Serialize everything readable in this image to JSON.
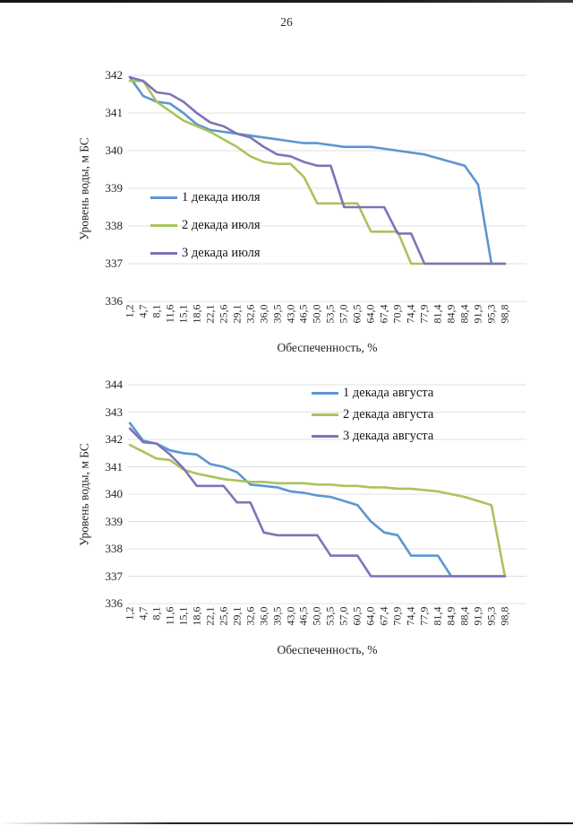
{
  "page": {
    "number": "26"
  },
  "chart_data": [
    {
      "type": "line",
      "title": "",
      "xlabel": "Обеспеченность, %",
      "ylabel": "Уровень воды, м БС",
      "ylim": [
        336,
        342
      ],
      "ytick_step": 1,
      "grid": true,
      "legend_position": "inside-left-middle",
      "categories": [
        "1,2",
        "4,7",
        "8,1",
        "11,6",
        "15,1",
        "18,6",
        "22,1",
        "25,6",
        "29,1",
        "32,6",
        "36,0",
        "39,5",
        "43,0",
        "46,5",
        "50,0",
        "53,5",
        "57,0",
        "60,5",
        "64,0",
        "67,4",
        "70,9",
        "74,4",
        "77,9",
        "81,4",
        "84,9",
        "88,4",
        "91,9",
        "95,3",
        "98,8"
      ],
      "series": [
        {
          "name": "1 декада июля",
          "color": "#5b96d2",
          "values": [
            341.95,
            341.45,
            341.3,
            341.25,
            341.0,
            340.7,
            340.55,
            340.5,
            340.45,
            340.4,
            340.35,
            340.3,
            340.25,
            340.2,
            340.2,
            340.15,
            340.1,
            340.1,
            340.1,
            340.05,
            340.0,
            339.95,
            339.9,
            339.8,
            339.7,
            339.6,
            339.1,
            337.0,
            337.0
          ]
        },
        {
          "name": "2 декада июля",
          "color": "#a9c45c",
          "values": [
            341.85,
            341.85,
            341.3,
            341.05,
            340.8,
            340.65,
            340.5,
            340.3,
            340.1,
            339.85,
            339.7,
            339.65,
            339.65,
            339.3,
            338.6,
            338.6,
            338.6,
            338.6,
            337.85,
            337.85,
            337.85,
            337.0,
            337.0,
            337.0,
            337.0,
            337.0,
            337.0,
            337.0,
            337.0
          ]
        },
        {
          "name": "3 декада июля",
          "color": "#7d74b9",
          "values": [
            341.95,
            341.85,
            341.55,
            341.5,
            341.3,
            341.0,
            340.75,
            340.65,
            340.45,
            340.35,
            340.1,
            339.9,
            339.85,
            339.7,
            339.6,
            339.6,
            338.5,
            338.5,
            338.5,
            338.5,
            337.8,
            337.8,
            337.0,
            337.0,
            337.0,
            337.0,
            337.0,
            337.0,
            337.0
          ]
        }
      ]
    },
    {
      "type": "line",
      "title": "",
      "xlabel": "Обеспеченность, %",
      "ylabel": "Уровень воды, м БС",
      "ylim": [
        336,
        344
      ],
      "ytick_step": 1,
      "grid": true,
      "legend_position": "inside-top-right",
      "categories": [
        "1,2",
        "4,7",
        "8,1",
        "11,6",
        "15,1",
        "18,6",
        "22,1",
        "25,6",
        "29,1",
        "32,6",
        "36,0",
        "39,5",
        "43,0",
        "46,5",
        "50,0",
        "53,5",
        "57,0",
        "60,5",
        "64,0",
        "67,4",
        "70,9",
        "74,4",
        "77,9",
        "81,4",
        "84,9",
        "88,4",
        "91,9",
        "95,3",
        "98,8"
      ],
      "series": [
        {
          "name": "1 декада августа",
          "color": "#5b96d2",
          "values": [
            342.6,
            341.95,
            341.85,
            341.6,
            341.5,
            341.45,
            341.1,
            341.0,
            340.8,
            340.35,
            340.3,
            340.25,
            340.1,
            340.05,
            339.95,
            339.9,
            339.75,
            339.6,
            339.0,
            338.6,
            338.5,
            337.75,
            337.75,
            337.75,
            337.0,
            337.0,
            337.0,
            337.0,
            337.0
          ]
        },
        {
          "name": "2 декада августа",
          "color": "#a9c45c",
          "values": [
            341.8,
            341.55,
            341.3,
            341.25,
            340.9,
            340.75,
            340.65,
            340.55,
            340.5,
            340.45,
            340.45,
            340.4,
            340.4,
            340.4,
            340.35,
            340.35,
            340.3,
            340.3,
            340.25,
            340.25,
            340.2,
            340.2,
            340.15,
            340.1,
            340.0,
            339.9,
            339.75,
            339.6,
            337.0
          ]
        },
        {
          "name": "3 декада августа",
          "color": "#7d74b9",
          "values": [
            342.4,
            341.9,
            341.85,
            341.45,
            340.95,
            340.3,
            340.3,
            340.3,
            339.7,
            339.7,
            338.6,
            338.5,
            338.5,
            338.5,
            338.5,
            337.75,
            337.75,
            337.75,
            337.0,
            337.0,
            337.0,
            337.0,
            337.0,
            337.0,
            337.0,
            337.0,
            337.0,
            337.0,
            337.0
          ]
        }
      ]
    }
  ]
}
